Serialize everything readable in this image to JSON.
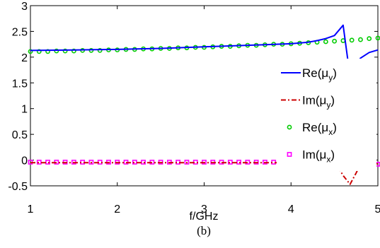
{
  "chart_data": {
    "type": "line",
    "title": "",
    "xlabel": "f/GHz",
    "ylabel": "",
    "panel_label": "(b)",
    "xlim": [
      1,
      5
    ],
    "ylim": [
      -0.5,
      3
    ],
    "xticks": [
      1,
      2,
      3,
      4,
      5
    ],
    "yticks": [
      -0.5,
      0,
      0.5,
      1,
      1.5,
      2,
      2.5,
      3
    ],
    "grid": false,
    "legend_position": "right",
    "series": [
      {
        "name": "Re(μ_y)",
        "label_main": "Re(μ",
        "label_sub": "y",
        "label_close": ")",
        "style": "solid-line",
        "color": "#0000ff",
        "x": [
          1,
          1.5,
          2,
          2.5,
          3,
          3.5,
          4,
          4.2,
          4.3,
          4.4,
          4.5,
          4.6,
          4.68,
          4.8,
          4.9,
          5
        ],
        "y": [
          2.13,
          2.14,
          2.15,
          2.17,
          2.2,
          2.23,
          2.26,
          2.29,
          2.32,
          2.36,
          2.42,
          2.62,
          1.62,
          1.98,
          2.09,
          2.14
        ]
      },
      {
        "name": "Im(μ_y)",
        "label_main": "Im(μ",
        "label_sub": "y",
        "label_close": ")",
        "style": "dash-dot-line",
        "color": "#cc0000",
        "x": [
          1,
          2,
          3,
          4,
          4.3,
          4.5,
          4.55,
          4.6,
          4.68,
          4.75,
          4.8,
          5
        ],
        "y": [
          -0.05,
          -0.05,
          -0.05,
          -0.05,
          -0.06,
          -0.09,
          -0.16,
          -0.3,
          -0.47,
          -0.25,
          -0.08,
          -0.07
        ]
      },
      {
        "name": "Re(μ_x)",
        "label_main": "Re(μ",
        "label_sub": "x",
        "label_close": ")",
        "style": "circle-markers",
        "color": "#00cc00",
        "x": [
          1,
          1.1,
          1.2,
          1.3,
          1.4,
          1.5,
          1.6,
          1.7,
          1.8,
          1.9,
          2,
          2.1,
          2.2,
          2.3,
          2.4,
          2.5,
          2.6,
          2.7,
          2.8,
          2.9,
          3,
          3.1,
          3.2,
          3.3,
          3.4,
          3.5,
          3.6,
          3.7,
          3.8,
          3.9,
          4,
          4.1,
          4.2,
          4.3,
          4.4,
          4.5,
          4.6,
          4.7,
          4.8,
          4.9,
          5
        ],
        "y": [
          2.11,
          2.11,
          2.11,
          2.12,
          2.12,
          2.12,
          2.13,
          2.13,
          2.13,
          2.14,
          2.14,
          2.15,
          2.15,
          2.16,
          2.16,
          2.17,
          2.17,
          2.18,
          2.18,
          2.19,
          2.19,
          2.2,
          2.21,
          2.21,
          2.22,
          2.23,
          2.23,
          2.24,
          2.25,
          2.25,
          2.26,
          2.27,
          2.28,
          2.29,
          2.3,
          2.31,
          2.32,
          2.33,
          2.34,
          2.36,
          2.37
        ]
      },
      {
        "name": "Im(μ_x)",
        "label_main": "Im(μ",
        "label_sub": "x",
        "label_close": ")",
        "style": "square-markers",
        "color": "#ff00ff",
        "x": [
          1,
          1.1,
          1.2,
          1.3,
          1.4,
          1.5,
          1.6,
          1.7,
          1.8,
          1.9,
          2,
          2.1,
          2.2,
          2.3,
          2.4,
          2.5,
          2.6,
          2.7,
          2.8,
          2.9,
          3,
          3.1,
          3.2,
          3.3,
          3.4,
          3.5,
          3.6,
          3.7,
          3.8,
          3.9,
          4,
          4.1,
          4.2,
          4.3,
          4.4,
          4.5,
          4.6,
          4.7,
          4.8,
          4.9,
          5
        ],
        "y": [
          -0.04,
          -0.04,
          -0.04,
          -0.04,
          -0.04,
          -0.04,
          -0.04,
          -0.04,
          -0.04,
          -0.04,
          -0.04,
          -0.04,
          -0.04,
          -0.04,
          -0.04,
          -0.04,
          -0.04,
          -0.04,
          -0.04,
          -0.04,
          -0.04,
          -0.04,
          -0.04,
          -0.04,
          -0.04,
          -0.04,
          -0.04,
          -0.04,
          -0.04,
          -0.04,
          -0.04,
          -0.04,
          -0.04,
          -0.04,
          -0.05,
          -0.05,
          -0.05,
          -0.06,
          -0.06,
          -0.07,
          -0.08
        ]
      }
    ]
  }
}
